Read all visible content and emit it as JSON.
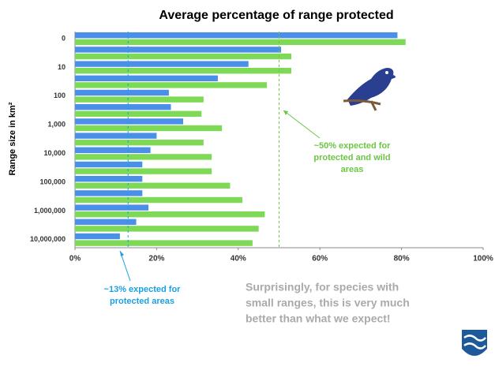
{
  "chart_data": {
    "type": "bar",
    "orientation": "horizontal",
    "title": "Average percentage of range protected",
    "y_label": "Range size in km²",
    "categories": [
      "0",
      null,
      "10",
      null,
      "100",
      null,
      "1,000",
      null,
      "10,000",
      null,
      "100,000",
      null,
      "1,000,000",
      null,
      "10,000,000"
    ],
    "series": [
      {
        "color": "#4a90e8",
        "values": [
          79,
          50.5,
          42.5,
          35,
          23,
          23.5,
          26.5,
          20,
          18.5,
          16.5,
          16.5,
          16.5,
          18,
          15,
          11
        ]
      },
      {
        "color": "#7ed957",
        "values": [
          81,
          53,
          53,
          47,
          31.5,
          31,
          36,
          31.5,
          33.5,
          33.5,
          38,
          41,
          46.5,
          45,
          43.5
        ]
      }
    ],
    "xlim": [
      0,
      100
    ],
    "xticks": [
      {
        "value": 0,
        "label": "0%"
      },
      {
        "value": 20,
        "label": "20%"
      },
      {
        "value": 40,
        "label": "40%"
      },
      {
        "value": 60,
        "label": "60%"
      },
      {
        "value": 80,
        "label": "80%"
      },
      {
        "value": 100,
        "label": "100%"
      }
    ],
    "reference_lines": [
      {
        "value": 13,
        "color": "#1a9fe0",
        "label": [
          "~13% expected for",
          "protected areas"
        ]
      },
      {
        "value": 50,
        "color": "#6cc644",
        "label": [
          "~50% expected for",
          "protected and wild",
          "areas"
        ]
      }
    ],
    "note": [
      "Surprisingly,  for species with",
      "small ranges, this is very much",
      "better than what we expect!"
    ]
  }
}
